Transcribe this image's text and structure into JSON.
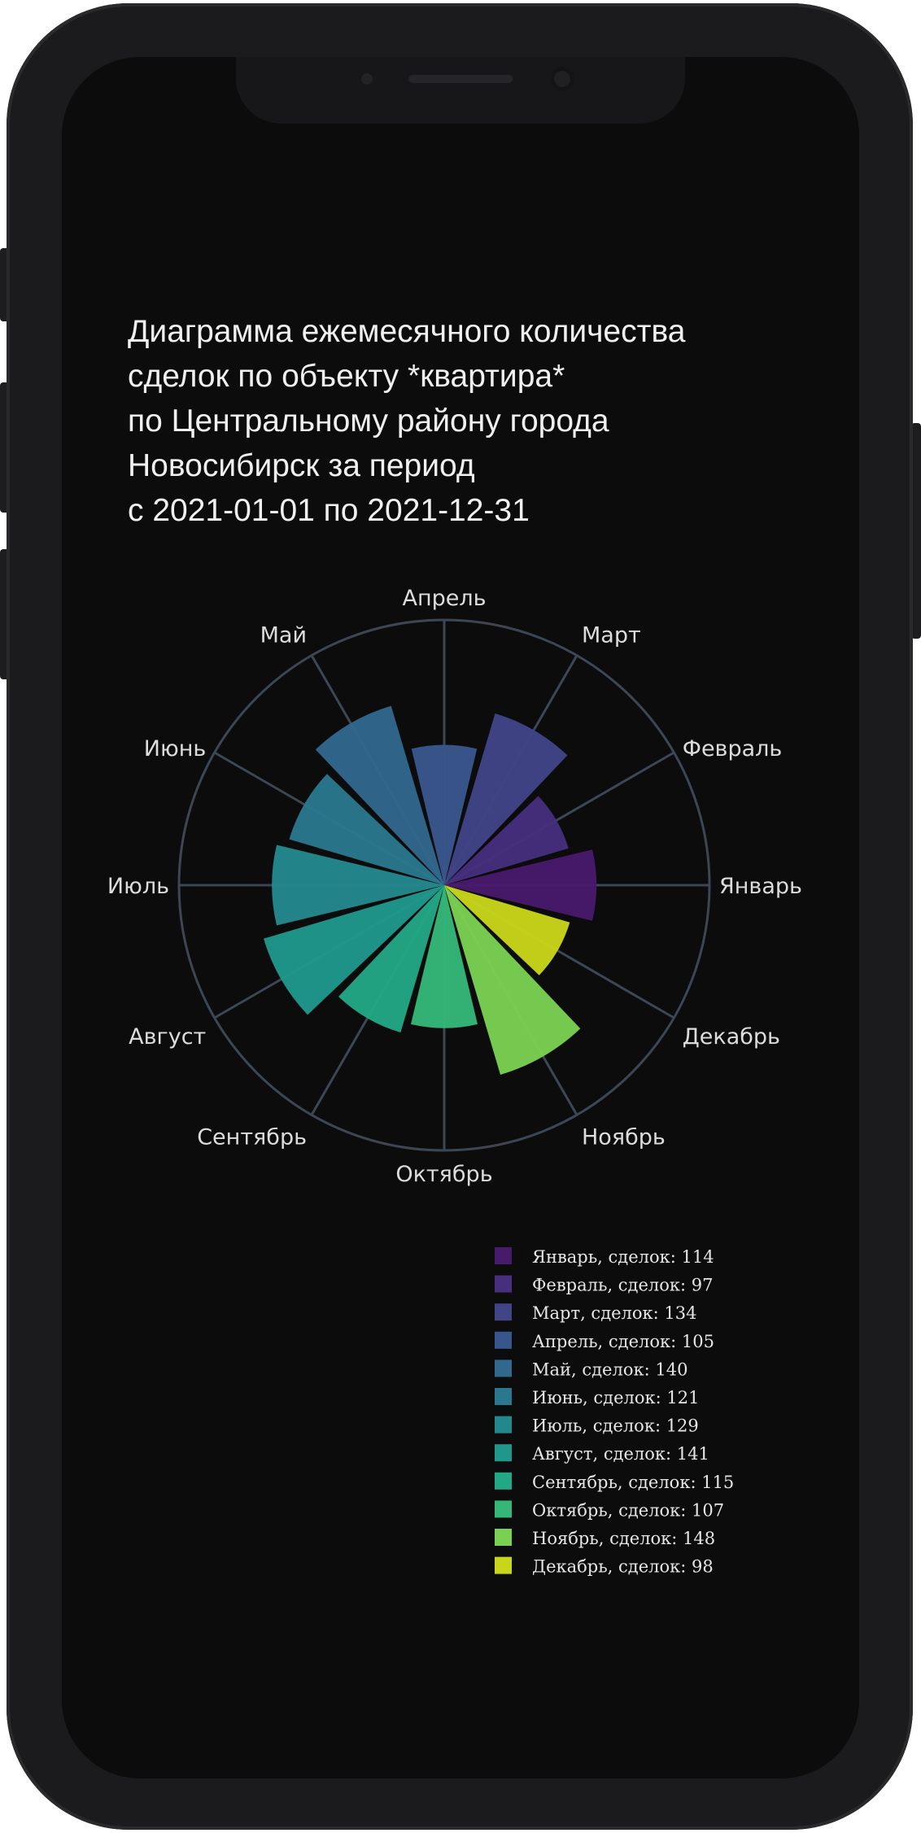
{
  "chart_data": {
    "type": "polar-bar",
    "title": "Диаграмма ежемесячного количества\nсделок по объекту *квартира*\nпо Центральному району города\nНовосибирск за период\nс 2021-01-01 по 2021-12-31",
    "categories": [
      "Январь",
      "Февраль",
      "Март",
      "Апрель",
      "Май",
      "Июнь",
      "Июль",
      "Август",
      "Сентябрь",
      "Октябрь",
      "Ноябрь",
      "Декабрь"
    ],
    "values": [
      114,
      97,
      134,
      105,
      140,
      121,
      129,
      141,
      115,
      107,
      148,
      98
    ],
    "colors": [
      "#481a6c",
      "#472f7d",
      "#414487",
      "#39568c",
      "#31688e",
      "#2a788e",
      "#23888e",
      "#1f988b",
      "#22a884",
      "#35b779",
      "#7ad151",
      "#c9d51a"
    ],
    "legend_suffix": ", сделок: ",
    "legend": [
      "Январь, сделок: 114",
      "Февраль, сделок: 97",
      "Март, сделок: 134",
      "Апрель, сделок: 105",
      "Май, сделок: 140",
      "Июнь, сделок: 121",
      "Июль, сделок: 129",
      "Август, сделок: 141",
      "Сентябрь, сделок: 115",
      "Октябрь, сделок: 107",
      "Ноябрь, сделок: 148",
      "Декабрь, сделок: 98"
    ],
    "legend_placement": "bottom-right",
    "grid": true,
    "rlim": [
      0,
      155
    ]
  },
  "theme": {
    "background": "#0c0c0c",
    "grid_color": "#3d4654",
    "text_color": "#dcdcdc"
  }
}
